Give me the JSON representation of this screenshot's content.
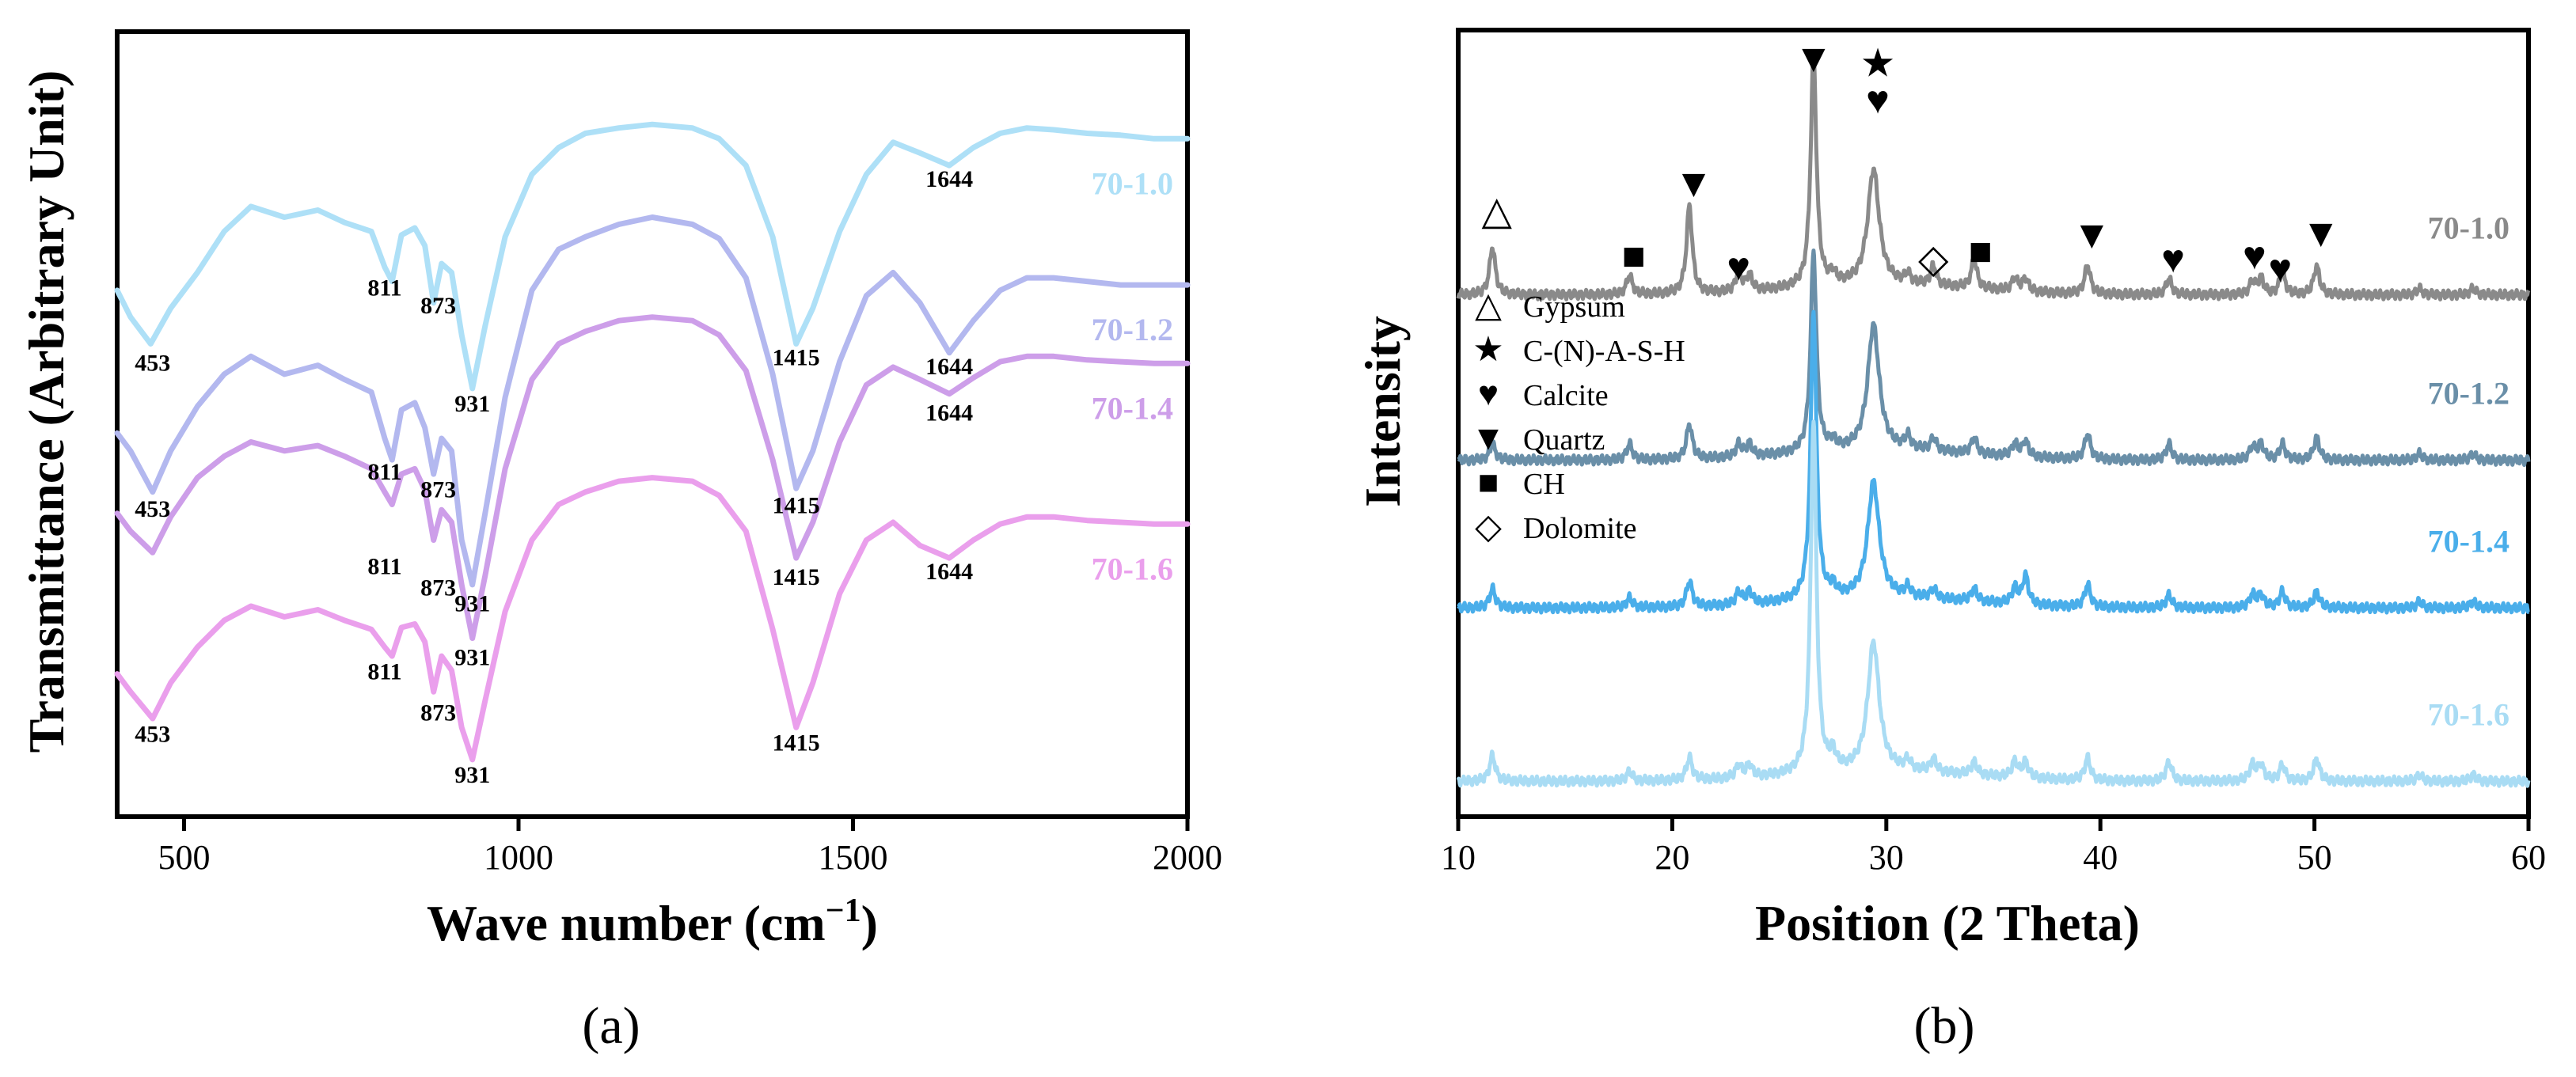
{
  "chart_data": [
    {
      "type": "line",
      "panel_label": "(a)",
      "title": "",
      "xlabel": "Wave number (cm",
      "xlabel_sup": "−1",
      "xlabel_end": ")",
      "ylabel": "Transmittance (Arbitrary Unit)",
      "xlim": [
        400,
        2000
      ],
      "xticks": [
        500,
        1000,
        1500,
        2000
      ],
      "y_tick_labels": false,
      "grid": false,
      "series": [
        {
          "name": "70-1.0",
          "color": "#aee0f7",
          "x": [
            400,
            420,
            450,
            480,
            520,
            560,
            600,
            650,
            700,
            740,
            780,
            800,
            811,
            825,
            845,
            860,
            873,
            885,
            900,
            915,
            931,
            950,
            980,
            1020,
            1060,
            1100,
            1150,
            1200,
            1260,
            1300,
            1340,
            1380,
            1415,
            1440,
            1480,
            1520,
            1560,
            1600,
            1644,
            1680,
            1720,
            1760,
            1800,
            1850,
            1900,
            1950,
            2000
          ],
          "values": [
            2.45,
            2.3,
            2.15,
            2.35,
            2.55,
            2.78,
            2.92,
            2.86,
            2.9,
            2.83,
            2.78,
            2.58,
            2.5,
            2.76,
            2.8,
            2.7,
            2.38,
            2.6,
            2.55,
            2.2,
            1.9,
            2.25,
            2.75,
            3.1,
            3.25,
            3.33,
            3.36,
            3.38,
            3.36,
            3.3,
            3.15,
            2.75,
            2.15,
            2.35,
            2.78,
            3.1,
            3.28,
            3.22,
            3.15,
            3.25,
            3.33,
            3.36,
            3.35,
            3.33,
            3.32,
            3.3,
            3.3
          ]
        },
        {
          "name": "70-1.2",
          "color": "#b3b8ef",
          "x": [
            400,
            420,
            453,
            480,
            520,
            560,
            600,
            650,
            700,
            740,
            780,
            800,
            811,
            825,
            845,
            860,
            873,
            885,
            900,
            915,
            931,
            950,
            980,
            1020,
            1060,
            1100,
            1150,
            1200,
            1260,
            1300,
            1340,
            1380,
            1415,
            1440,
            1480,
            1520,
            1560,
            1600,
            1644,
            1680,
            1720,
            1760,
            1800,
            1850,
            1900,
            1950,
            2000
          ],
          "values": [
            1.65,
            1.55,
            1.32,
            1.55,
            1.8,
            1.98,
            2.08,
            1.98,
            2.03,
            1.95,
            1.88,
            1.62,
            1.5,
            1.78,
            1.82,
            1.68,
            1.42,
            1.62,
            1.55,
            1.05,
            0.8,
            1.2,
            1.85,
            2.45,
            2.68,
            2.75,
            2.82,
            2.86,
            2.82,
            2.74,
            2.52,
            1.98,
            1.34,
            1.55,
            2.05,
            2.42,
            2.55,
            2.38,
            2.1,
            2.28,
            2.45,
            2.52,
            2.52,
            2.5,
            2.48,
            2.48,
            2.48
          ]
        },
        {
          "name": "70-1.4",
          "color": "#cd9ee9",
          "x": [
            400,
            420,
            453,
            480,
            520,
            560,
            600,
            650,
            700,
            740,
            780,
            800,
            811,
            825,
            845,
            860,
            873,
            885,
            900,
            915,
            931,
            950,
            980,
            1020,
            1060,
            1100,
            1150,
            1200,
            1260,
            1300,
            1340,
            1380,
            1415,
            1440,
            1480,
            1520,
            1560,
            1600,
            1644,
            1680,
            1720,
            1760,
            1800,
            1850,
            1900,
            1950,
            2000
          ],
          "values": [
            1.2,
            1.1,
            0.98,
            1.18,
            1.4,
            1.52,
            1.6,
            1.55,
            1.58,
            1.52,
            1.45,
            1.32,
            1.25,
            1.42,
            1.45,
            1.33,
            1.05,
            1.22,
            1.15,
            0.8,
            0.5,
            0.85,
            1.45,
            1.95,
            2.15,
            2.22,
            2.28,
            2.3,
            2.28,
            2.2,
            2.0,
            1.5,
            0.95,
            1.15,
            1.6,
            1.92,
            2.02,
            1.95,
            1.87,
            1.96,
            2.05,
            2.08,
            2.08,
            2.06,
            2.05,
            2.04,
            2.04
          ]
        },
        {
          "name": "70-1.6",
          "color": "#ea9fec",
          "x": [
            400,
            420,
            453,
            480,
            520,
            560,
            600,
            650,
            700,
            740,
            780,
            800,
            811,
            825,
            845,
            860,
            873,
            885,
            900,
            915,
            931,
            950,
            980,
            1020,
            1060,
            1100,
            1150,
            1200,
            1260,
            1300,
            1340,
            1380,
            1415,
            1440,
            1480,
            1520,
            1560,
            1600,
            1644,
            1680,
            1720,
            1760,
            1800,
            1850,
            1900,
            1950,
            2000
          ],
          "values": [
            0.3,
            0.2,
            0.05,
            0.25,
            0.45,
            0.6,
            0.68,
            0.62,
            0.66,
            0.6,
            0.55,
            0.45,
            0.4,
            0.56,
            0.58,
            0.48,
            0.2,
            0.4,
            0.32,
            0.0,
            -0.18,
            0.15,
            0.65,
            1.05,
            1.25,
            1.32,
            1.38,
            1.4,
            1.38,
            1.3,
            1.1,
            0.55,
            0.0,
            0.25,
            0.75,
            1.05,
            1.15,
            1.02,
            0.95,
            1.05,
            1.14,
            1.18,
            1.18,
            1.16,
            1.15,
            1.14,
            1.14
          ]
        }
      ],
      "annotations": [
        {
          "text": "453",
          "x": 453,
          "y": 2.0
        },
        {
          "text": "811",
          "x": 800,
          "y": 2.42
        },
        {
          "text": "873",
          "x": 880,
          "y": 2.32
        },
        {
          "text": "931",
          "x": 931,
          "y": 1.77
        },
        {
          "text": "1415",
          "x": 1415,
          "y": 2.03
        },
        {
          "text": "1644",
          "x": 1644,
          "y": 3.03
        },
        {
          "text": "453",
          "x": 453,
          "y": 1.18
        },
        {
          "text": "811",
          "x": 800,
          "y": 1.39
        },
        {
          "text": "873",
          "x": 880,
          "y": 1.29
        },
        {
          "text": "931",
          "x": 931,
          "y": 0.65
        },
        {
          "text": "1415",
          "x": 1415,
          "y": 1.2
        },
        {
          "text": "1644",
          "x": 1644,
          "y": 1.98
        },
        {
          "text": "811",
          "x": 800,
          "y": 0.86
        },
        {
          "text": "873",
          "x": 880,
          "y": 0.74
        },
        {
          "text": "931",
          "x": 931,
          "y": 0.35
        },
        {
          "text": "1415",
          "x": 1415,
          "y": 0.8
        },
        {
          "text": "1644",
          "x": 1644,
          "y": 1.72
        },
        {
          "text": "453",
          "x": 453,
          "y": -0.08
        },
        {
          "text": "811",
          "x": 800,
          "y": 0.27
        },
        {
          "text": "873",
          "x": 880,
          "y": 0.04
        },
        {
          "text": "931",
          "x": 931,
          "y": -0.31
        },
        {
          "text": "1415",
          "x": 1415,
          "y": -0.13
        },
        {
          "text": "1644",
          "x": 1644,
          "y": 0.83
        }
      ]
    },
    {
      "type": "line",
      "panel_label": "(b)",
      "title": "",
      "xlabel": "Position (2 Theta)",
      "ylabel": "Intensity",
      "xlim": [
        10,
        60
      ],
      "xticks": [
        10,
        20,
        30,
        40,
        50,
        60
      ],
      "y_tick_labels": false,
      "grid": false,
      "peaks_2theta": [
        11.6,
        18.0,
        20.8,
        23.1,
        23.6,
        26.6,
        27.5,
        29.4,
        31.0,
        32.2,
        34.1,
        36.0,
        36.5,
        39.4,
        43.2,
        47.1,
        47.5,
        48.5,
        50.1,
        54.9,
        57.4
      ],
      "series": [
        {
          "name": "70-1.0",
          "color": "#8a8a8a",
          "baseline": 3.25,
          "peak_heights": [
            0.3,
            0.12,
            0.55,
            0.12,
            0.1,
            1.45,
            0.06,
            0.72,
            0.06,
            0.12,
            0.18,
            0.08,
            0.08,
            0.18,
            0.1,
            0.08,
            0.1,
            0.14,
            0.18,
            0.04,
            0.04
          ]
        },
        {
          "name": "70-1.2",
          "color": "#6a8fa8",
          "baseline": 2.22,
          "peak_heights": [
            0.1,
            0.1,
            0.22,
            0.08,
            0.08,
            1.25,
            0.05,
            0.78,
            0.08,
            0.08,
            0.1,
            0.08,
            0.1,
            0.16,
            0.1,
            0.08,
            0.1,
            0.1,
            0.14,
            0.04,
            0.04
          ]
        },
        {
          "name": "70-1.4",
          "color": "#4aaeea",
          "baseline": 1.3,
          "peak_heights": [
            0.12,
            0.06,
            0.16,
            0.08,
            0.08,
            1.8,
            0.06,
            0.72,
            0.06,
            0.06,
            0.08,
            0.1,
            0.18,
            0.14,
            0.08,
            0.08,
            0.08,
            0.1,
            0.1,
            0.04,
            0.04
          ]
        },
        {
          "name": "70-1.6",
          "color": "#a9dcf4",
          "baseline": 0.22,
          "peak_heights": [
            0.16,
            0.06,
            0.14,
            0.08,
            0.08,
            2.2,
            0.1,
            0.8,
            0.06,
            0.08,
            0.08,
            0.1,
            0.1,
            0.14,
            0.12,
            0.1,
            0.1,
            0.1,
            0.14,
            0.04,
            0.04
          ]
        }
      ],
      "legend": [
        {
          "symbol": "△",
          "label": "Gypsum",
          "name": "gypsum"
        },
        {
          "symbol": "★",
          "label": "C-(N)-A-S-H",
          "name": "cnash"
        },
        {
          "symbol": "♥",
          "label": "Calcite",
          "name": "calcite"
        },
        {
          "symbol": "▼",
          "label": "Quartz",
          "name": "quartz"
        },
        {
          "symbol": "■",
          "label": "CH",
          "name": "ch"
        },
        {
          "symbol": "◇",
          "label": "Dolomite",
          "name": "dolomite"
        }
      ],
      "markers": [
        {
          "symbol": "△",
          "x": 11.8,
          "y": 3.78
        },
        {
          "symbol": "■",
          "x": 18.2,
          "y": 3.5
        },
        {
          "symbol": "▼",
          "x": 21.0,
          "y": 3.95
        },
        {
          "symbol": "♥",
          "x": 23.1,
          "y": 3.43
        },
        {
          "symbol": "▼",
          "x": 26.6,
          "y": 4.73
        },
        {
          "symbol": "★",
          "x": 29.6,
          "y": 4.7
        },
        {
          "symbol": "♥",
          "x": 29.6,
          "y": 4.47
        },
        {
          "symbol": "◇",
          "x": 32.2,
          "y": 3.48
        },
        {
          "symbol": "■",
          "x": 34.4,
          "y": 3.53
        },
        {
          "symbol": "▼",
          "x": 39.6,
          "y": 3.63
        },
        {
          "symbol": "♥",
          "x": 43.4,
          "y": 3.48
        },
        {
          "symbol": "♥",
          "x": 47.2,
          "y": 3.5
        },
        {
          "symbol": "♥",
          "x": 48.4,
          "y": 3.42
        },
        {
          "symbol": "▼",
          "x": 50.3,
          "y": 3.64
        }
      ]
    }
  ]
}
